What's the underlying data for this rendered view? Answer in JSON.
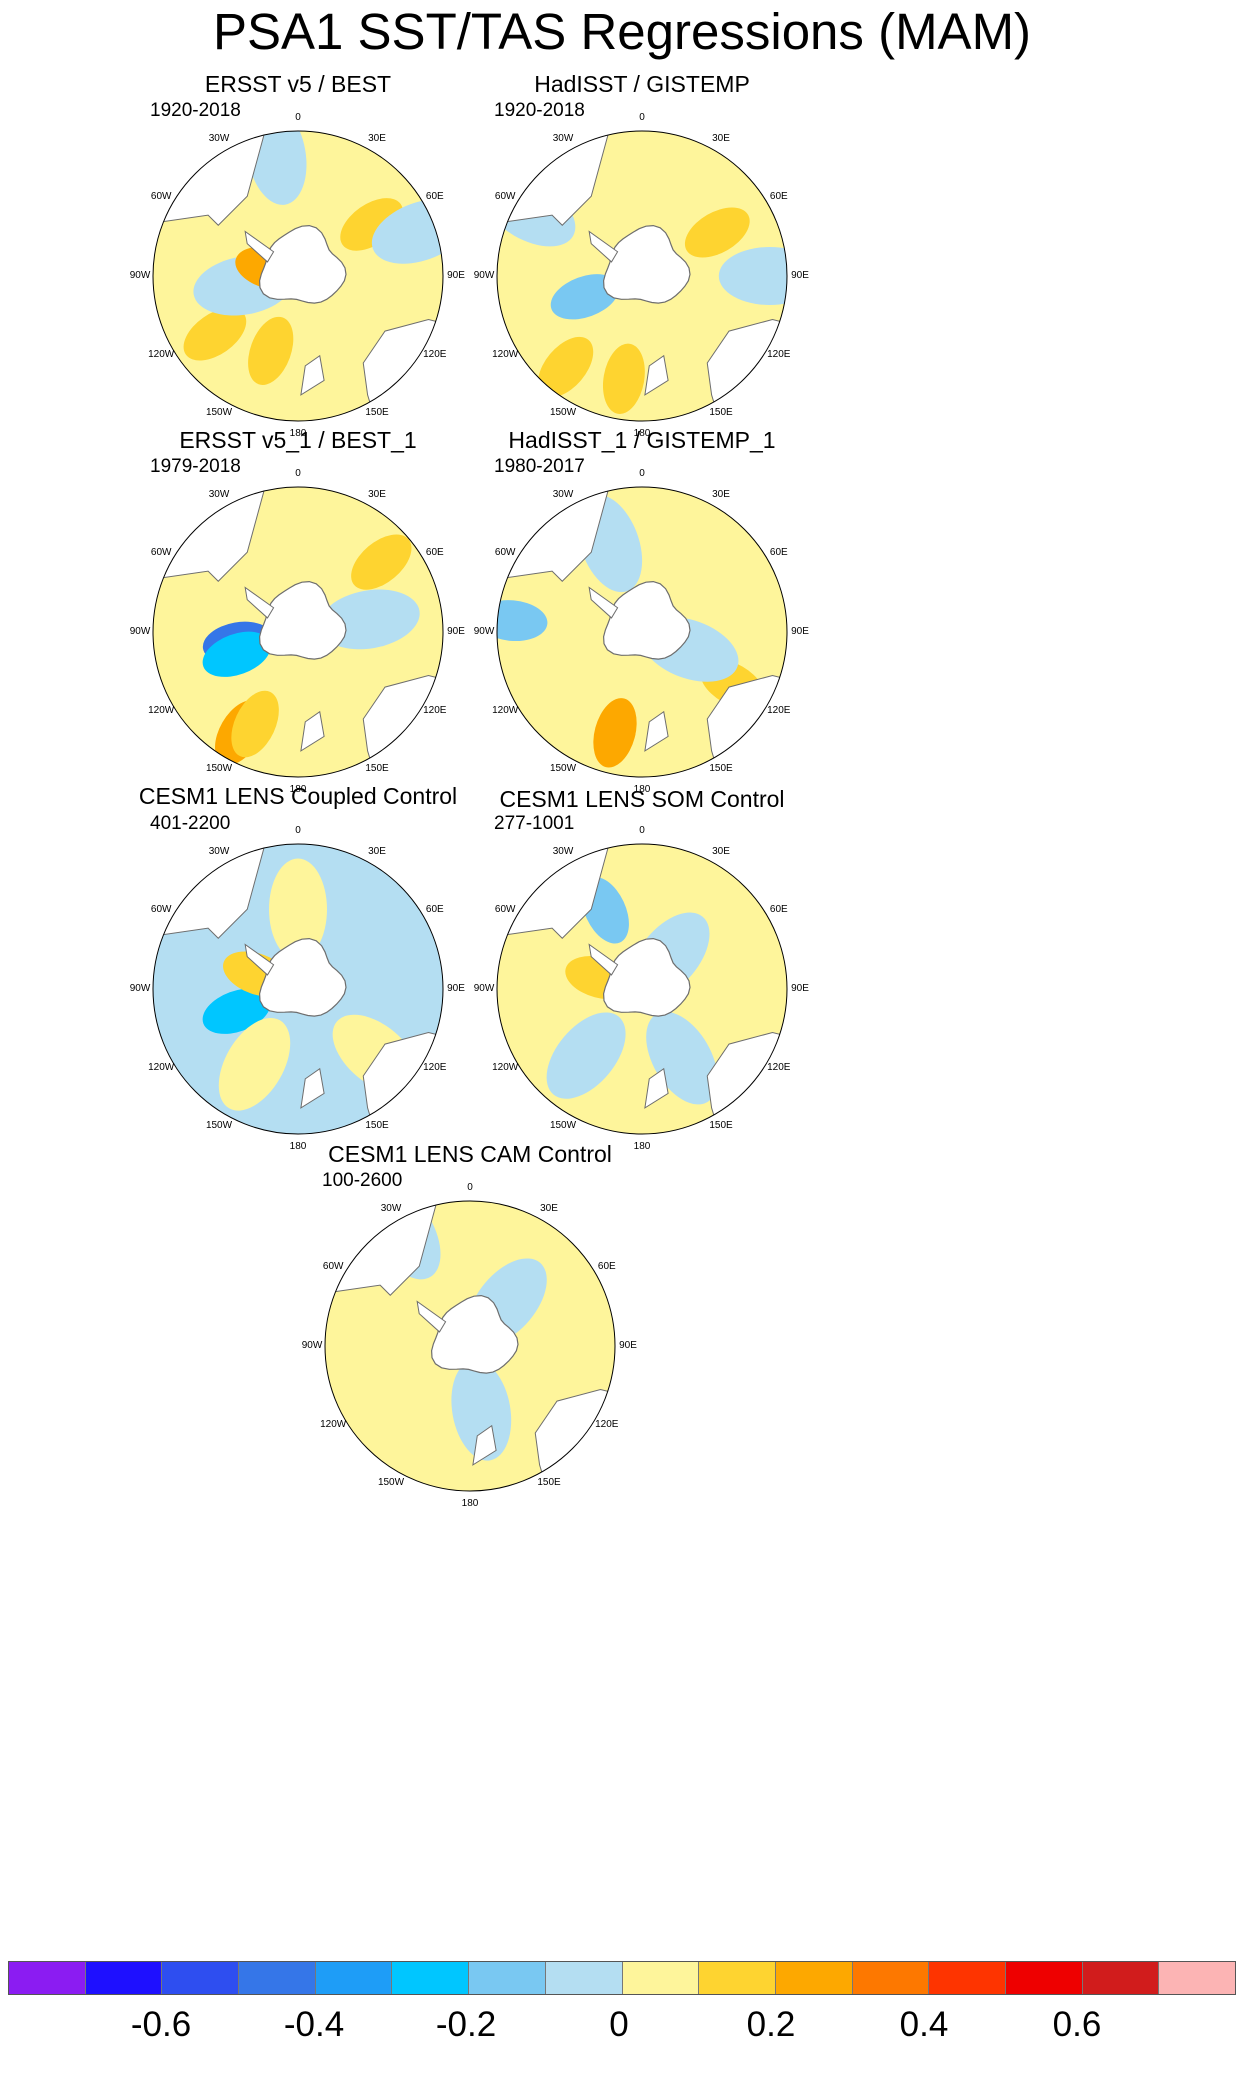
{
  "title": "PSA1 SST/TAS Regressions (MAM)",
  "colors": {
    "land": "#ffffff",
    "coast": "#6e6e6e",
    "outline": "#000000",
    "levels": [
      "#8b1cf2",
      "#1e10ff",
      "#2e4ef0",
      "#3576e8",
      "#1e9df7",
      "#00c6ff",
      "#79c8f2",
      "#b4def2",
      "#fef59b",
      "#fed430",
      "#fda800",
      "#fd7800",
      "#fe3400",
      "#ee0000",
      "#d11c1c",
      "#fcb4b4"
    ]
  },
  "colorbar": {
    "ticks": [
      "-0.6",
      "-0.4",
      "-0.2",
      "0",
      "0.2",
      "0.4",
      "0.6"
    ]
  },
  "longitude_labels": [
    "0",
    "30E",
    "60E",
    "90E",
    "120E",
    "150E",
    "180",
    "150W",
    "120W",
    "90W",
    "60W",
    "30W"
  ],
  "panels": [
    {
      "title": "ERSST v5 / BEST",
      "period": "1920-2018",
      "dominant": "mixed",
      "features": [
        {
          "level": "0.2",
          "lon": -160,
          "r": 0.55
        },
        {
          "level": "0.2",
          "lon": -125,
          "r": 0.7
        },
        {
          "level": "0.2",
          "lon": 55,
          "r": 0.62
        },
        {
          "level": "-0.1",
          "lon": -100,
          "r": 0.38
        },
        {
          "level": "-0.1",
          "lon": 70,
          "r": 0.9
        },
        {
          "level": "-0.1",
          "lon": -10,
          "r": 0.85
        },
        {
          "level": "0.3",
          "lon": -75,
          "r": 0.2
        }
      ]
    },
    {
      "title": "HadISST / GISTEMP",
      "period": "1920-2018",
      "dominant": "mixed",
      "features": [
        {
          "level": "0.2",
          "lon": -170,
          "r": 0.72
        },
        {
          "level": "0.2",
          "lon": -140,
          "r": 0.82
        },
        {
          "level": "0.2",
          "lon": 60,
          "r": 0.6
        },
        {
          "level": "-0.2",
          "lon": -110,
          "r": 0.42
        },
        {
          "level": "-0.1",
          "lon": 90,
          "r": 0.88
        },
        {
          "level": "-0.1",
          "lon": -60,
          "r": 0.9
        }
      ]
    },
    {
      "title": "ERSST v5_1 / BEST_1",
      "period": "1979-2018",
      "dominant": "mixed",
      "features": [
        {
          "level": "-0.5",
          "lon": -100,
          "r": 0.42
        },
        {
          "level": "-0.3",
          "lon": -110,
          "r": 0.45
        },
        {
          "level": "0.3",
          "lon": -150,
          "r": 0.8
        },
        {
          "level": "0.2",
          "lon": -155,
          "r": 0.7
        },
        {
          "level": "0.2",
          "lon": 50,
          "r": 0.75
        },
        {
          "level": "-0.1",
          "lon": 80,
          "r": 0.5
        }
      ]
    },
    {
      "title": "HadISST_1 / GISTEMP_1",
      "period": "1980-2017",
      "dominant": "mixed",
      "features": [
        {
          "level": "0.3",
          "lon": -165,
          "r": 0.72
        },
        {
          "level": "0.2",
          "lon": 120,
          "r": 0.72
        },
        {
          "level": "-0.2",
          "lon": -85,
          "r": 0.9
        },
        {
          "level": "-0.1",
          "lon": -20,
          "r": 0.65
        },
        {
          "level": "-0.1",
          "lon": 110,
          "r": 0.35
        }
      ]
    },
    {
      "title": "CESM1 LENS Coupled Control",
      "period": "401-2200",
      "dominant": "negative",
      "features": [
        {
          "level": "-0.3",
          "lon": -110,
          "r": 0.45
        },
        {
          "level": "0.2",
          "lon": -70,
          "r": 0.3
        },
        {
          "level": "0.1",
          "lon": -150,
          "r": 0.6
        },
        {
          "level": "0.1",
          "lon": 0,
          "r": 0.55
        },
        {
          "level": "0.1",
          "lon": 130,
          "r": 0.7
        }
      ]
    },
    {
      "title": "CESM1 LENS SOM Control",
      "period": "277-1001",
      "dominant": "positive",
      "features": [
        {
          "level": "-0.2",
          "lon": -25,
          "r": 0.6
        },
        {
          "level": "0.2",
          "lon": -75,
          "r": 0.3
        },
        {
          "level": "-0.1",
          "lon": 150,
          "r": 0.55
        },
        {
          "level": "-0.1",
          "lon": -140,
          "r": 0.6
        },
        {
          "level": "-0.1",
          "lon": 40,
          "r": 0.3
        }
      ]
    },
    {
      "title": "CESM1 LENS CAM Control",
      "period": "100-2600",
      "dominant": "positive",
      "features": [
        {
          "level": "-0.1",
          "lon": -30,
          "r": 0.9
        },
        {
          "level": "-0.1",
          "lon": 40,
          "r": 0.4
        },
        {
          "level": "-0.1",
          "lon": 170,
          "r": 0.45
        }
      ]
    }
  ]
}
